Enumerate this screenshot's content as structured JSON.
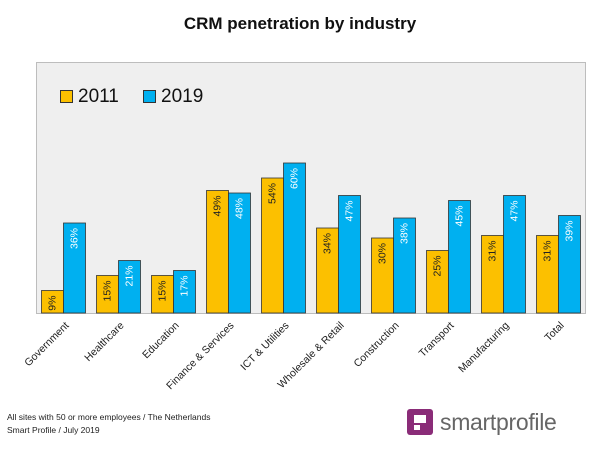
{
  "chart_data": {
    "type": "bar",
    "title": "CRM penetration by industry",
    "categories": [
      "Government",
      "Healthcare",
      "Education",
      "Finance & Services",
      "ICT & Utilities",
      "Wholesale & Retail",
      "Construction",
      "Transport",
      "Manufacturing",
      "Total"
    ],
    "series": [
      {
        "name": "2011",
        "values": [
          9,
          15,
          15,
          49,
          54,
          34,
          30,
          25,
          31,
          31
        ],
        "labels": [
          "9%",
          "15%",
          "15%",
          "49%",
          "54%",
          "34%",
          "30%",
          "25%",
          "31%",
          "31%"
        ],
        "color": "#fcc000"
      },
      {
        "name": "2019",
        "values": [
          36,
          21,
          17,
          48,
          60,
          47,
          38,
          45,
          47,
          39
        ],
        "labels": [
          "36%",
          "21%",
          "17%",
          "48%",
          "60%",
          "47%",
          "38%",
          "45%",
          "47%",
          "39%"
        ],
        "color": "#00b0f0"
      }
    ],
    "ylim": [
      0,
      75
    ],
    "legend_position": "top-left",
    "grid": false,
    "xlabel": "",
    "ylabel": ""
  },
  "footnote": {
    "line1": "All sites with 50 or more employees  / The Netherlands",
    "line2": "Smart Profile / July 2019"
  },
  "logo": {
    "text": "smartprofile",
    "color": "#8a2c78"
  }
}
